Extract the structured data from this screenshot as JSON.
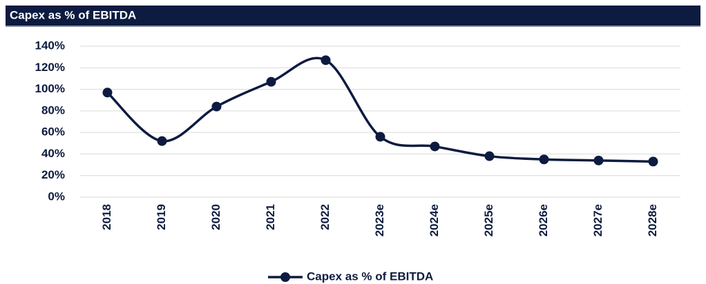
{
  "chart_data": {
    "type": "line",
    "title": "Capex as % of EBITDA",
    "categories": [
      "2018",
      "2019",
      "2020",
      "2021",
      "2022",
      "2023e",
      "2024e",
      "2025e",
      "2026e",
      "2027e",
      "2028e"
    ],
    "series": [
      {
        "name": "Capex as % of EBITDA",
        "color": "#0d1b40",
        "values": [
          97,
          52,
          84,
          107,
          127,
          56,
          47,
          38,
          35,
          34,
          33
        ]
      }
    ],
    "ylim": [
      0,
      140
    ],
    "yticks": [
      {
        "value": 0,
        "label": "0%"
      },
      {
        "value": 20,
        "label": "20%"
      },
      {
        "value": 40,
        "label": "40%"
      },
      {
        "value": 60,
        "label": "60%"
      },
      {
        "value": 80,
        "label": "80%"
      },
      {
        "value": 100,
        "label": "100%"
      },
      {
        "value": 120,
        "label": "120%"
      },
      {
        "value": 140,
        "label": "140%"
      }
    ],
    "grid": true,
    "smooth": true,
    "legend": "bottom"
  }
}
